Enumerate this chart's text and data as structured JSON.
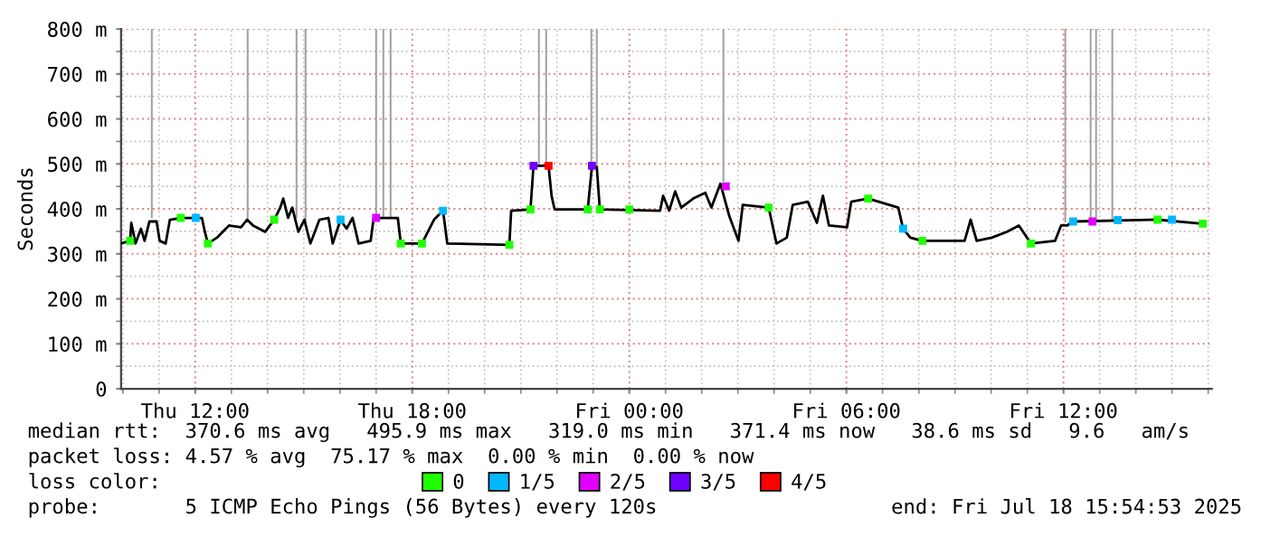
{
  "chart_data": {
    "type": "line",
    "ylabel": "Seconds",
    "xlim": [
      "2025-07-17T09:57",
      "2025-07-18T16:06"
    ],
    "xticks": [
      {
        "value": "2025-07-17T12:00",
        "label": "Thu 12:00"
      },
      {
        "value": "2025-07-17T18:00",
        "label": "Thu 18:00"
      },
      {
        "value": "2025-07-18T00:00",
        "label": "Fri 00:00"
      },
      {
        "value": "2025-07-18T06:00",
        "label": "Fri 06:00"
      },
      {
        "value": "2025-07-18T12:00",
        "label": "Fri 12:00"
      }
    ],
    "ylim": [
      0,
      800
    ],
    "yticks": [
      0,
      {
        "value": 100,
        "label": "100 m"
      },
      {
        "value": 200,
        "label": "200 m"
      },
      {
        "value": 300,
        "label": "300 m"
      },
      {
        "value": 400,
        "label": "400 m"
      },
      {
        "value": 500,
        "label": "500 m"
      },
      {
        "value": 600,
        "label": "600 m"
      },
      {
        "value": 700,
        "label": "700 m"
      },
      {
        "value": 800,
        "label": "800 m"
      }
    ],
    "grid": true,
    "legend": "bottom",
    "legend_title": "loss color:",
    "line_style": "solid",
    "series": [
      {
        "type": "bar",
        "color": "#a0a0a0",
        "x": [
          "2025-07-17T10:48",
          "2025-07-17T13:27",
          "2025-07-17T14:48",
          "2025-07-17T15:03",
          "2025-07-17T17:00",
          "2025-07-17T17:12",
          "2025-07-17T17:24",
          "2025-07-17T21:30",
          "2025-07-17T21:42",
          "2025-07-17T22:57",
          "2025-07-17T23:06",
          "2025-07-18T02:36",
          "2025-07-18T12:03",
          "2025-07-18T12:45",
          "2025-07-18T12:54",
          "2025-07-18T13:21"
        ],
        "base": [
          380,
          375,
          380,
          370,
          380,
          380,
          380,
          500,
          500,
          490,
          490,
          460,
          370,
          375,
          375,
          375
        ],
        "values": [
          420,
          425,
          420,
          430,
          420,
          420,
          420,
          300,
          300,
          310,
          310,
          340,
          430,
          425,
          425,
          425
        ]
      },
      {
        "color": "#000000",
        "x": [
          "2025-07-17T09:57",
          "2025-07-17T10:12",
          "2025-07-17T10:14",
          "2025-07-17T10:21",
          "2025-07-17T10:30",
          "2025-07-17T10:36",
          "2025-07-17T10:44",
          "2025-07-17T10:56",
          "2025-07-17T11:01",
          "2025-07-17T11:11",
          "2025-07-17T11:18",
          "2025-07-17T11:36",
          "2025-07-17T12:11",
          "2025-07-17T12:16",
          "2025-07-17T12:21",
          "2025-07-17T12:36",
          "2025-07-17T12:56",
          "2025-07-17T13:16",
          "2025-07-17T13:26",
          "2025-07-17T13:36",
          "2025-07-17T13:56",
          "2025-07-17T14:11",
          "2025-07-17T14:21",
          "2025-07-17T14:26",
          "2025-07-17T14:34",
          "2025-07-17T14:41",
          "2025-07-17T14:51",
          "2025-07-17T15:01",
          "2025-07-17T15:11",
          "2025-07-17T15:26",
          "2025-07-17T15:41",
          "2025-07-17T15:48",
          "2025-07-17T16:01",
          "2025-07-17T16:11",
          "2025-07-17T16:21",
          "2025-07-17T16:31",
          "2025-07-17T16:51",
          "2025-07-17T16:56",
          "2025-07-17T17:36",
          "2025-07-17T17:41",
          "2025-07-17T18:16",
          "2025-07-17T18:36",
          "2025-07-17T18:51",
          "2025-07-17T18:58",
          "2025-07-17T20:41",
          "2025-07-17T20:44",
          "2025-07-17T21:16",
          "2025-07-17T21:21",
          "2025-07-17T21:46",
          "2025-07-17T21:51",
          "2025-07-17T21:56",
          "2025-07-17T22:51",
          "2025-07-17T22:58",
          "2025-07-17T23:06",
          "2025-07-17T23:11",
          "2025-07-18T00:51",
          "2025-07-18T00:56",
          "2025-07-18T01:06",
          "2025-07-18T01:16",
          "2025-07-18T01:26",
          "2025-07-18T01:46",
          "2025-07-18T02:06",
          "2025-07-18T02:16",
          "2025-07-18T02:31",
          "2025-07-18T02:46",
          "2025-07-18T03:01",
          "2025-07-18T03:08",
          "2025-07-18T03:51",
          "2025-07-18T04:04",
          "2025-07-18T04:21",
          "2025-07-18T04:31",
          "2025-07-18T04:56",
          "2025-07-18T05:11",
          "2025-07-18T05:21",
          "2025-07-18T05:31",
          "2025-07-18T06:01",
          "2025-07-18T06:08",
          "2025-07-18T06:36",
          "2025-07-18T07:26",
          "2025-07-18T07:34",
          "2025-07-18T07:46",
          "2025-07-18T08:06",
          "2025-07-18T09:16",
          "2025-07-18T09:26",
          "2025-07-18T09:36",
          "2025-07-18T10:01",
          "2025-07-18T10:26",
          "2025-07-18T10:46",
          "2025-07-18T11:06",
          "2025-07-18T11:46",
          "2025-07-18T11:56",
          "2025-07-18T12:06",
          "2025-07-18T12:16",
          "2025-07-18T14:36",
          "2025-07-18T15:51"
        ],
        "values": [
          323,
          329,
          369,
          323,
          356,
          329,
          372,
          372,
          329,
          323,
          376,
          380,
          380,
          349,
          323,
          336,
          363,
          359,
          376,
          363,
          349,
          376,
          403,
          423,
          380,
          403,
          349,
          376,
          323,
          376,
          380,
          323,
          376,
          356,
          380,
          323,
          329,
          380,
          380,
          323,
          323,
          376,
          396,
          323,
          320,
          396,
          399,
          496,
          496,
          429,
          399,
          399,
          496,
          493,
          399,
          396,
          429,
          396,
          439,
          403,
          423,
          436,
          403,
          456,
          383,
          329,
          409,
          403,
          323,
          336,
          409,
          416,
          369,
          429,
          363,
          359,
          416,
          423,
          403,
          356,
          336,
          329,
          329,
          376,
          329,
          336,
          349,
          363,
          323,
          329,
          363,
          363,
          372,
          376,
          367
        ]
      },
      {
        "type": "scatter",
        "name": "0",
        "color": "#20ff00",
        "x": [
          "2025-07-17T10:12",
          "2025-07-17T11:36",
          "2025-07-17T12:21",
          "2025-07-17T14:11",
          "2025-07-17T17:41",
          "2025-07-17T18:16",
          "2025-07-17T20:41",
          "2025-07-17T21:16",
          "2025-07-17T22:51",
          "2025-07-17T23:11",
          "2025-07-18T00:00",
          "2025-07-18T03:51",
          "2025-07-18T06:36",
          "2025-07-18T08:06",
          "2025-07-18T11:06",
          "2025-07-18T14:36",
          "2025-07-18T15:51"
        ],
        "values": [
          329,
          380,
          323,
          376,
          323,
          323,
          320,
          399,
          399,
          399,
          399,
          403,
          423,
          329,
          323,
          376,
          367
        ]
      },
      {
        "type": "scatter",
        "name": "1/5",
        "color": "#00b8ff",
        "x": [
          "2025-07-17T12:01",
          "2025-07-17T16:01",
          "2025-07-17T18:51",
          "2025-07-18T07:34",
          "2025-07-18T12:16",
          "2025-07-18T13:30",
          "2025-07-18T15:00"
        ],
        "values": [
          380,
          376,
          396,
          356,
          372,
          375,
          376
        ]
      },
      {
        "type": "scatter",
        "name": "2/5",
        "color": "#e000ff",
        "x": [
          "2025-07-17T17:00",
          "2025-07-18T02:40",
          "2025-07-18T12:48"
        ],
        "values": [
          380,
          450,
          372
        ]
      },
      {
        "type": "scatter",
        "name": "3/5",
        "color": "#7000ff",
        "x": [
          "2025-07-17T21:21",
          "2025-07-17T22:58"
        ],
        "values": [
          496,
          496
        ]
      },
      {
        "type": "scatter",
        "name": "4/5",
        "color": "#ff0000",
        "x": [
          "2025-07-17T21:46"
        ],
        "values": [
          496
        ]
      }
    ],
    "annotations": [
      "median rtt:  370.6 ms avg   495.9 ms max   319.0 ms min   371.4 ms now   38.6 ms sd   9.6   am/s",
      "packet loss: 4.57 % avg  75.17 % max  0.00 % min  0.00 % now",
      "probe:       5 ICMP Echo Pings (56 Bytes) every 120s",
      "end: Fri Jul 18 15:54:53 2025"
    ]
  }
}
